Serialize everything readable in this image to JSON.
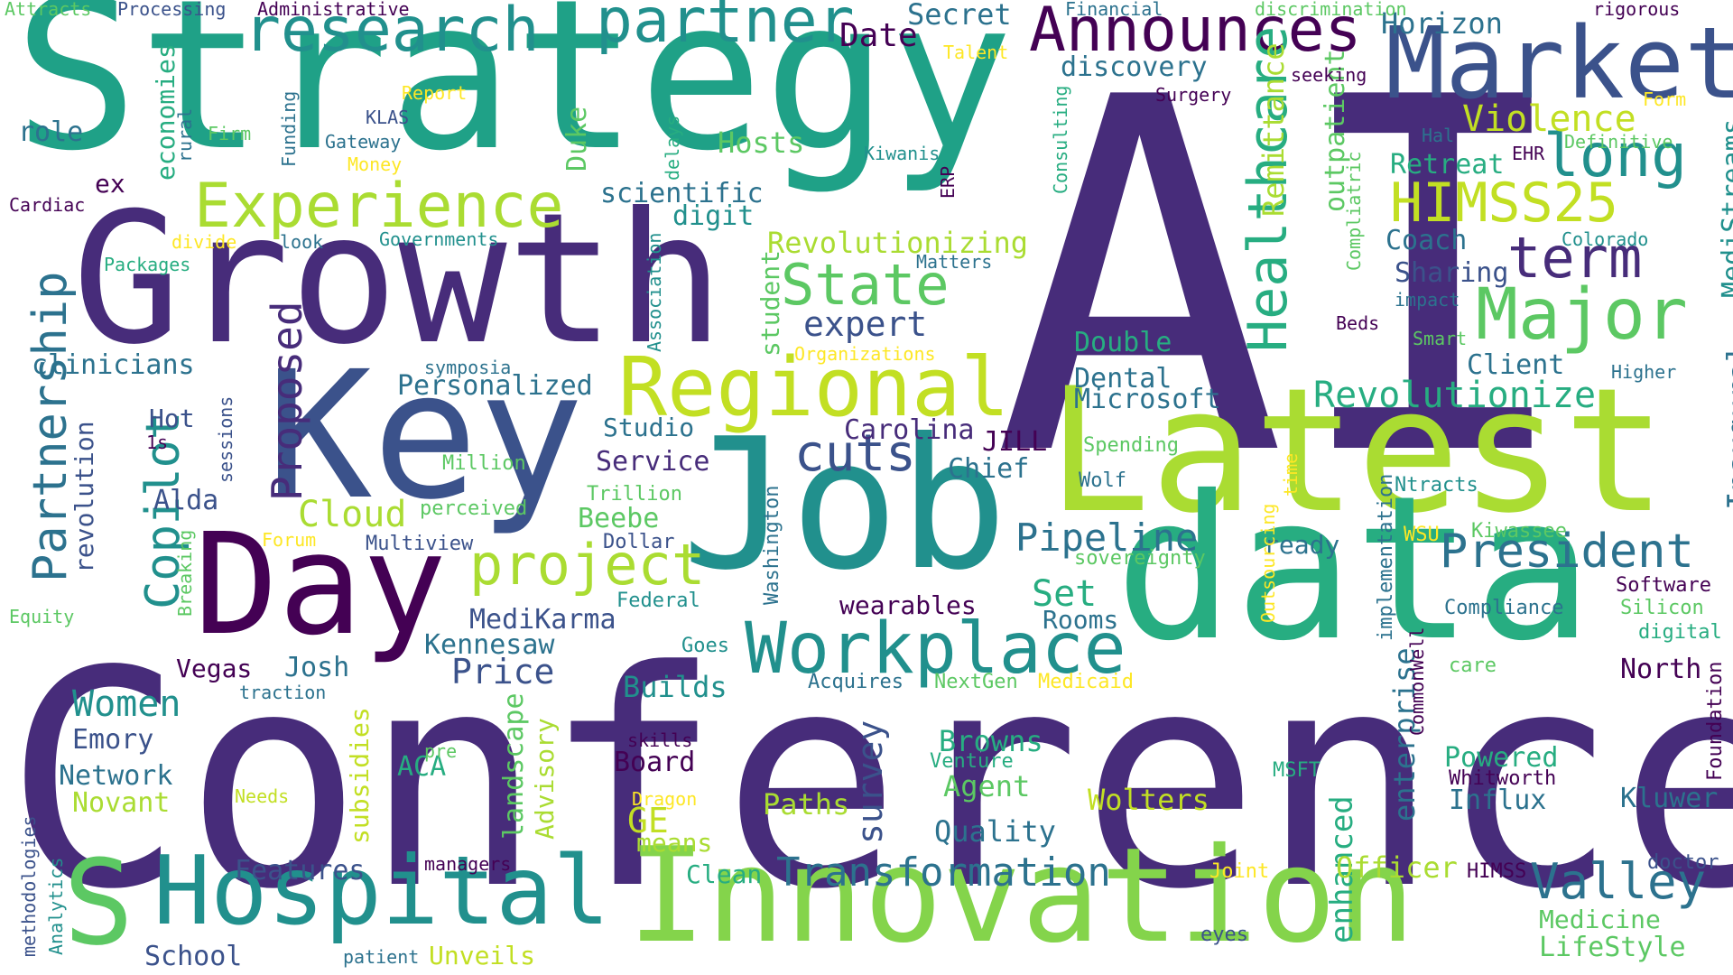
{
  "palette": {
    "purple_dark": "#440154",
    "purple": "#472c7a",
    "indigo": "#3b528b",
    "blue": "#2c728e",
    "teal": "#21908d",
    "green_teal": "#27ad81",
    "green": "#5cc863",
    "lime": "#aadc32",
    "yellow": "#fde725"
  },
  "words": [
    {
      "text": "AI",
      "color": "#472c7a"
    },
    {
      "text": "Conference",
      "color": "#472c7a"
    },
    {
      "text": "Strategy",
      "color": "#1fa187"
    },
    {
      "text": "Growth",
      "color": "#472c7a"
    },
    {
      "text": "Key",
      "color": "#3b528b"
    },
    {
      "text": "Latest",
      "color": "#aadc32"
    },
    {
      "text": "data",
      "color": "#27ad81"
    },
    {
      "text": "Job",
      "color": "#21908d"
    },
    {
      "text": "Day",
      "color": "#440154"
    },
    {
      "text": "Innovation",
      "color": "#84d44b"
    },
    {
      "text": "Hospital",
      "color": "#21908d"
    },
    {
      "text": "S",
      "color": "#5cc863"
    },
    {
      "text": "Market",
      "color": "#3b528b"
    },
    {
      "text": "Regional",
      "color": "#c2df23"
    },
    {
      "text": "Workplace",
      "color": "#21908d"
    },
    {
      "text": "Experience",
      "color": "#aadc32"
    },
    {
      "text": "research",
      "color": "#21908d"
    },
    {
      "text": "partner",
      "color": "#21908d"
    },
    {
      "text": "Announces",
      "color": "#440154"
    },
    {
      "text": "Healthcare",
      "color": "#27ad81"
    },
    {
      "text": "Major",
      "color": "#5cc863"
    },
    {
      "text": "long",
      "color": "#21908d"
    },
    {
      "text": "term",
      "color": "#472c7a"
    },
    {
      "text": "HIMSS25",
      "color": "#c2df23"
    },
    {
      "text": "President",
      "color": "#2c728e"
    },
    {
      "text": "Valley",
      "color": "#2c728e"
    },
    {
      "text": "project",
      "color": "#aadc32"
    },
    {
      "text": "State",
      "color": "#5cc863"
    },
    {
      "text": "Partnership",
      "color": "#2c728e"
    },
    {
      "text": "Copilot",
      "color": "#21908d"
    },
    {
      "text": "Proposed",
      "color": "#472c7a"
    },
    {
      "text": "Transformation",
      "color": "#2c728e"
    },
    {
      "text": "cuts",
      "color": "#3b528b"
    },
    {
      "text": "Revolutionize",
      "color": "#27ad81"
    },
    {
      "text": "Pipeline",
      "color": "#2c728e"
    },
    {
      "text": "expert",
      "color": "#3b528b"
    },
    {
      "text": "Price",
      "color": "#3b528b"
    },
    {
      "text": "Women",
      "color": "#21908d"
    },
    {
      "text": "Violence",
      "color": "#c2df23"
    },
    {
      "text": "Horizon",
      "color": "#2c728e"
    },
    {
      "text": "Date",
      "color": "#440154"
    },
    {
      "text": "Secret",
      "color": "#2c728e"
    },
    {
      "text": "Inaugural",
      "color": "#2c728e"
    },
    {
      "text": "MediStreams",
      "color": "#21908d"
    },
    {
      "text": "survey",
      "color": "#3b528b"
    },
    {
      "text": "Cloud",
      "color": "#aadc32"
    },
    {
      "text": "Revolutionizing",
      "color": "#aadc32"
    },
    {
      "text": "Set",
      "color": "#27ad81"
    },
    {
      "text": "enhanced",
      "color": "#27ad81"
    },
    {
      "text": "Remittance",
      "color": "#aadc32"
    },
    {
      "text": "outpatient",
      "color": "#5cc863"
    },
    {
      "text": "Double",
      "color": "#27ad81"
    },
    {
      "text": "Dental",
      "color": "#2c728e"
    },
    {
      "text": "Microsoft",
      "color": "#2c728e"
    },
    {
      "text": "Hosts",
      "color": "#5cc863"
    },
    {
      "text": "Retreat",
      "color": "#27ad81"
    },
    {
      "text": "Coach",
      "color": "#2c728e"
    },
    {
      "text": "Sharing",
      "color": "#3b528b"
    },
    {
      "text": "Client",
      "color": "#2c728e"
    },
    {
      "text": "Personalized",
      "color": "#2c728e"
    },
    {
      "text": "Carolina",
      "color": "#472c7a"
    },
    {
      "text": "Chief",
      "color": "#2c728e"
    },
    {
      "text": "JILL",
      "color": "#440154"
    },
    {
      "text": "Studio",
      "color": "#2c728e"
    },
    {
      "text": "Service",
      "color": "#472c7a"
    },
    {
      "text": "scientific",
      "color": "#2c728e"
    },
    {
      "text": "digit",
      "color": "#21908d"
    },
    {
      "text": "discovery",
      "color": "#2c728e"
    },
    {
      "text": "wearables",
      "color": "#440154"
    },
    {
      "text": "Rooms",
      "color": "#2c728e"
    },
    {
      "text": "MediKarma",
      "color": "#3b528b"
    },
    {
      "text": "Kennesaw",
      "color": "#2c728e"
    },
    {
      "text": "Builds",
      "color": "#21908d"
    },
    {
      "text": "Board",
      "color": "#440154"
    },
    {
      "text": "GE",
      "color": "#c2df23"
    },
    {
      "text": "means",
      "color": "#aadc32"
    },
    {
      "text": "Paths",
      "color": "#aadc32"
    },
    {
      "text": "Agent",
      "color": "#5cc863"
    },
    {
      "text": "Browns",
      "color": "#27ad81"
    },
    {
      "text": "Quality",
      "color": "#2c728e"
    },
    {
      "text": "Wolters",
      "color": "#c2df23"
    },
    {
      "text": "Officer",
      "color": "#aadc32"
    },
    {
      "text": "Medicine",
      "color": "#5cc863"
    },
    {
      "text": "LifeStyle",
      "color": "#5cc863"
    },
    {
      "text": "Kluwer",
      "color": "#2c728e"
    },
    {
      "text": "Influx",
      "color": "#2c728e"
    },
    {
      "text": "Powered",
      "color": "#27ad81"
    },
    {
      "text": "North",
      "color": "#440154"
    },
    {
      "text": "Emory",
      "color": "#3b528b"
    },
    {
      "text": "Network",
      "color": "#2c728e"
    },
    {
      "text": "Novant",
      "color": "#aadc32"
    },
    {
      "text": "Features",
      "color": "#3b528b"
    },
    {
      "text": "School",
      "color": "#3b528b"
    },
    {
      "text": "Unveils",
      "color": "#c2df23"
    },
    {
      "text": "Advisory",
      "color": "#aadc32"
    },
    {
      "text": "landscape",
      "color": "#5cc863"
    },
    {
      "text": "subsidies",
      "color": "#c2df23"
    },
    {
      "text": "ACA",
      "color": "#27ad81"
    },
    {
      "text": "Josh",
      "color": "#2c728e"
    },
    {
      "text": "Vegas",
      "color": "#440154"
    },
    {
      "text": "Alda",
      "color": "#3b528b"
    },
    {
      "text": "Hot",
      "color": "#3b528b"
    },
    {
      "text": "clinicians",
      "color": "#2c728e"
    },
    {
      "text": "revolution",
      "color": "#3b528b"
    },
    {
      "text": "economies",
      "color": "#27ad81"
    },
    {
      "text": "role",
      "color": "#2c728e"
    },
    {
      "text": "ex",
      "color": "#440154"
    },
    {
      "text": "Cardiac",
      "color": "#440154"
    },
    {
      "text": "Duke",
      "color": "#5cc863"
    },
    {
      "text": "student",
      "color": "#5cc863"
    },
    {
      "text": "Beebe",
      "color": "#5cc863"
    },
    {
      "text": "Clean",
      "color": "#27ad81"
    },
    {
      "text": "ready",
      "color": "#2c728e"
    },
    {
      "text": "enterprise",
      "color": "#2c728e"
    },
    {
      "text": "implementation",
      "color": "#2c728e"
    },
    {
      "text": "Compliance",
      "color": "#2c728e"
    },
    {
      "text": "Silicon",
      "color": "#5cc863"
    },
    {
      "text": "digital",
      "color": "#27ad81"
    },
    {
      "text": "Software",
      "color": "#440154"
    },
    {
      "text": "Foundation",
      "color": "#440154"
    },
    {
      "text": "Whitworth",
      "color": "#440154"
    },
    {
      "text": "doctor",
      "color": "#3b528b"
    },
    {
      "text": "HIMSS",
      "color": "#440154"
    },
    {
      "text": "eyes",
      "color": "#3b528b"
    },
    {
      "text": "Joint",
      "color": "#fde725"
    },
    {
      "text": "MSFT",
      "color": "#27ad81"
    },
    {
      "text": "Venture",
      "color": "#27ad81"
    },
    {
      "text": "NextGen",
      "color": "#5cc863"
    },
    {
      "text": "Medicaid",
      "color": "#fde725"
    },
    {
      "text": "Acquires",
      "color": "#2c728e"
    },
    {
      "text": "Goes",
      "color": "#21908d"
    },
    {
      "text": "Federal",
      "color": "#21908d"
    },
    {
      "text": "Dollar",
      "color": "#3b528b"
    },
    {
      "text": "Trillion",
      "color": "#5cc863"
    },
    {
      "text": "Washington",
      "color": "#2c728e"
    },
    {
      "text": "sovereignty",
      "color": "#5cc863"
    },
    {
      "text": "Spending",
      "color": "#5cc863"
    },
    {
      "text": "Wolf",
      "color": "#2c728e"
    },
    {
      "text": "Ntracts",
      "color": "#21908d"
    },
    {
      "text": "Kiwassee",
      "color": "#5cc863"
    },
    {
      "text": "WSU",
      "color": "#fde725"
    },
    {
      "text": "Outsourcing",
      "color": "#fde725"
    },
    {
      "text": "time",
      "color": "#fde725"
    },
    {
      "text": "CommonWell",
      "color": "#440154"
    },
    {
      "text": "care",
      "color": "#5cc863"
    },
    {
      "text": "Multiview",
      "color": "#3b528b"
    },
    {
      "text": "perceived",
      "color": "#5cc863"
    },
    {
      "text": "Million",
      "color": "#5cc863"
    },
    {
      "text": "sessions",
      "color": "#3b528b"
    },
    {
      "text": "1s",
      "color": "#440154"
    },
    {
      "text": "Breaking",
      "color": "#5cc863"
    },
    {
      "text": "Forum",
      "color": "#fde725"
    },
    {
      "text": "Equity",
      "color": "#5cc863"
    },
    {
      "text": "traction",
      "color": "#2c728e"
    },
    {
      "text": "symposia",
      "color": "#2c728e"
    },
    {
      "text": "Organizations",
      "color": "#fde725"
    },
    {
      "text": "pre",
      "color": "#5cc863"
    },
    {
      "text": "skills",
      "color": "#440154"
    },
    {
      "text": "Needs",
      "color": "#c2df23"
    },
    {
      "text": "Dragon",
      "color": "#fde725"
    },
    {
      "text": "managers",
      "color": "#440154"
    },
    {
      "text": "patient",
      "color": "#2c728e"
    },
    {
      "text": "methodologies",
      "color": "#3b528b"
    },
    {
      "text": "Analytics",
      "color": "#21908d"
    },
    {
      "text": "Attracts",
      "color": "#5cc863"
    },
    {
      "text": "Processing",
      "color": "#3b528b"
    },
    {
      "text": "Administrative",
      "color": "#440154"
    },
    {
      "text": "Financial",
      "color": "#2c728e"
    },
    {
      "text": "discrimination",
      "color": "#5cc863"
    },
    {
      "text": "rigorous",
      "color": "#440154"
    },
    {
      "text": "Talent",
      "color": "#fde725"
    },
    {
      "text": "seeking",
      "color": "#440154"
    },
    {
      "text": "Surgery",
      "color": "#440154"
    },
    {
      "text": "Report",
      "color": "#fde725"
    },
    {
      "text": "Firm",
      "color": "#5cc863"
    },
    {
      "text": "Funding",
      "color": "#2c728e"
    },
    {
      "text": "KLAS",
      "color": "#3b528b"
    },
    {
      "text": "Gateway",
      "color": "#2c728e"
    },
    {
      "text": "Money",
      "color": "#fde725"
    },
    {
      "text": "rural",
      "color": "#2c728e"
    },
    {
      "text": "delays",
      "color": "#27ad81"
    },
    {
      "text": "Kiwanis",
      "color": "#21908d"
    },
    {
      "text": "ERP",
      "color": "#440154"
    },
    {
      "text": "Consulting",
      "color": "#27ad81"
    },
    {
      "text": "Association",
      "color": "#21908d"
    },
    {
      "text": "divide",
      "color": "#fde725"
    },
    {
      "text": "look",
      "color": "#2c728e"
    },
    {
      "text": "Governments",
      "color": "#21908d"
    },
    {
      "text": "Packages",
      "color": "#27ad81"
    },
    {
      "text": "Matters",
      "color": "#2c728e"
    },
    {
      "text": "Hal",
      "color": "#2c728e"
    },
    {
      "text": "EHR",
      "color": "#440154"
    },
    {
      "text": "Definitive",
      "color": "#5cc863"
    },
    {
      "text": "Form",
      "color": "#fde725"
    },
    {
      "text": "Compliatric",
      "color": "#5cc863"
    },
    {
      "text": "Colorado",
      "color": "#21908d"
    },
    {
      "text": "impact",
      "color": "#2c728e"
    },
    {
      "text": "Beds",
      "color": "#440154"
    },
    {
      "text": "Smart",
      "color": "#5cc863"
    },
    {
      "text": "Higher",
      "color": "#2c728e"
    }
  ]
}
